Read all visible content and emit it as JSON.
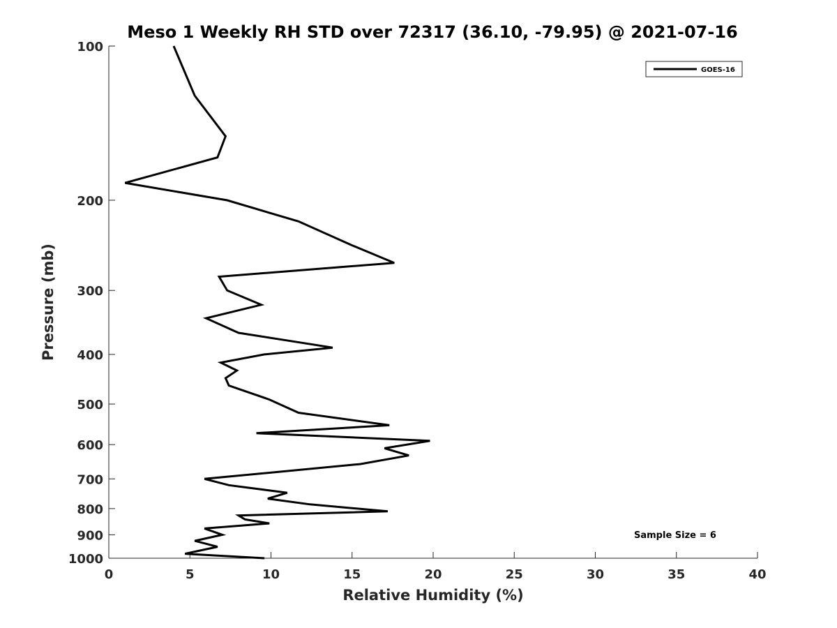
{
  "chart_data": {
    "type": "line",
    "title": "Meso 1 Weekly RH STD over 72317 (36.10, -79.95) @ 2021-07-16",
    "xlabel": "Relative Humidity (%)",
    "ylabel": "Pressure (mb)",
    "xlim": [
      0,
      40
    ],
    "ylim": [
      100,
      1000
    ],
    "yscale": "log",
    "y_reversed": true,
    "x_ticks": [
      0,
      5,
      10,
      15,
      20,
      25,
      30,
      35,
      40
    ],
    "y_ticks": [
      100,
      200,
      300,
      400,
      500,
      600,
      700,
      800,
      900,
      1000
    ],
    "grid": false,
    "legend": "top-right",
    "annotation": "Sample Size = 6",
    "series": [
      {
        "name": "GOES-16",
        "color": "#000000",
        "x": [
          4.0,
          5.3,
          7.2,
          6.7,
          1.0,
          7.3,
          11.7,
          15.0,
          17.6,
          6.8,
          7.3,
          9.4,
          6.0,
          8.0,
          13.8,
          9.6,
          6.9,
          7.9,
          7.2,
          7.4,
          9.9,
          11.7,
          17.3,
          9.1,
          19.8,
          17.0,
          18.5,
          15.5,
          5.9,
          7.4,
          11.0,
          9.8,
          12.4,
          17.2,
          8.0,
          8.4,
          9.9,
          5.9,
          7.0,
          5.3,
          6.7,
          4.7,
          9.6
        ],
        "y": [
          100,
          125,
          150,
          165,
          185,
          200,
          220,
          245,
          265,
          282,
          300,
          320,
          340,
          363,
          388,
          400,
          415,
          430,
          445,
          460,
          490,
          520,
          550,
          570,
          590,
          610,
          630,
          655,
          700,
          720,
          745,
          765,
          785,
          810,
          825,
          840,
          855,
          875,
          900,
          925,
          950,
          980,
          1000
        ]
      }
    ]
  }
}
